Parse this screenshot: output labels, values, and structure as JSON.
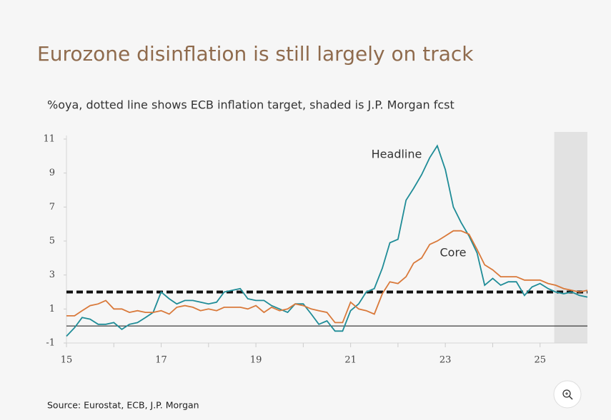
{
  "chart_data": {
    "type": "line",
    "title": "Eurozone disinflation is still largely on track",
    "subtitle": "%oya, dotted line shows ECB inflation target, shaded is J.P. Morgan fcst",
    "source": "Source: Eurostat, ECB, J.P. Morgan",
    "x": [
      15,
      15.17,
      15.33,
      15.5,
      15.67,
      15.83,
      16,
      16.17,
      16.33,
      16.5,
      16.67,
      16.83,
      17,
      17.17,
      17.33,
      17.5,
      17.67,
      17.83,
      18,
      18.17,
      18.33,
      18.5,
      18.67,
      18.83,
      19,
      19.17,
      19.33,
      19.5,
      19.67,
      19.83,
      20,
      20.17,
      20.33,
      20.5,
      20.67,
      20.83,
      21,
      21.17,
      21.33,
      21.5,
      21.67,
      21.83,
      22,
      22.17,
      22.33,
      22.5,
      22.67,
      22.83,
      23,
      23.17,
      23.33,
      23.5,
      23.67,
      23.83,
      24,
      24.17,
      24.33,
      24.5,
      24.67,
      24.83,
      25,
      25.17,
      25.33,
      25.5,
      25.67,
      25.83,
      26
    ],
    "series": [
      {
        "name": "Headline",
        "color": "#1f8c97",
        "values": [
          -0.6,
          -0.1,
          0.5,
          0.4,
          0.1,
          0.1,
          0.2,
          -0.2,
          0.1,
          0.2,
          0.5,
          0.8,
          2.0,
          1.6,
          1.3,
          1.5,
          1.5,
          1.4,
          1.3,
          1.4,
          2.0,
          2.1,
          2.2,
          1.6,
          1.5,
          1.5,
          1.2,
          1.0,
          0.8,
          1.3,
          1.3,
          0.7,
          0.1,
          0.3,
          -0.3,
          -0.3,
          0.9,
          1.3,
          2.0,
          2.2,
          3.4,
          4.9,
          5.1,
          7.4,
          8.1,
          8.9,
          9.9,
          10.6,
          9.2,
          7.0,
          6.1,
          5.3,
          4.3,
          2.4,
          2.8,
          2.4,
          2.6,
          2.6,
          1.8,
          2.3,
          2.5,
          2.2,
          2.0,
          1.9,
          2.0,
          1.8,
          1.7
        ]
      },
      {
        "name": "Core",
        "color": "#d9793a",
        "values": [
          0.6,
          0.6,
          0.9,
          1.2,
          1.3,
          1.5,
          1.0,
          1.0,
          0.8,
          0.9,
          0.8,
          0.8,
          0.9,
          0.7,
          1.1,
          1.2,
          1.1,
          0.9,
          1.0,
          0.9,
          1.1,
          1.1,
          1.1,
          1.0,
          1.2,
          0.8,
          1.1,
          0.9,
          1.0,
          1.3,
          1.2,
          1.0,
          0.9,
          0.8,
          0.2,
          0.2,
          1.4,
          1.0,
          0.9,
          0.7,
          1.9,
          2.6,
          2.5,
          2.9,
          3.7,
          4.0,
          4.8,
          5.0,
          5.3,
          5.6,
          5.6,
          5.4,
          4.5,
          3.6,
          3.3,
          2.9,
          2.9,
          2.9,
          2.7,
          2.7,
          2.7,
          2.5,
          2.4,
          2.2,
          2.1,
          2.0,
          2.1
        ]
      }
    ],
    "target": 2,
    "forecast_start": 25.3,
    "xlim": [
      15,
      26
    ],
    "xticks": [
      15,
      17,
      19,
      21,
      23,
      25
    ],
    "ylim": [
      -1,
      11
    ],
    "yticks": [
      -1,
      1,
      3,
      5,
      7,
      9,
      11
    ]
  }
}
